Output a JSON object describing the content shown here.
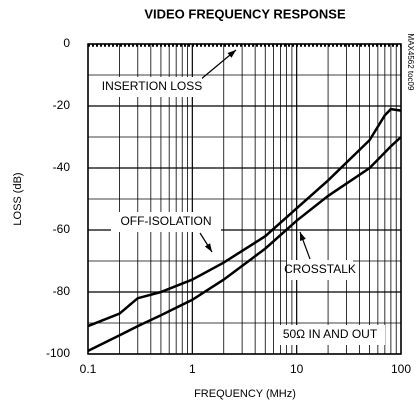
{
  "chart_data": {
    "type": "line",
    "title": "VIDEO FREQUENCY RESPONSE",
    "xlabel": "FREQUENCY (MHz)",
    "ylabel": "LOSS (dB)",
    "log_x": true,
    "grid": true,
    "color": "#000000",
    "xlim": [
      0.1,
      100
    ],
    "xticks": [
      0.1,
      1,
      10,
      100
    ],
    "ylim": [
      -100,
      0
    ],
    "yticks": [
      0,
      -20,
      -40,
      -60,
      -80,
      -100
    ],
    "x": [
      0.1,
      0.2,
      0.3,
      0.5,
      1,
      2,
      5,
      10,
      20,
      50,
      70,
      80,
      100
    ],
    "series": [
      {
        "name": "INSERTION LOSS",
        "color": "#000000",
        "style": "dotted",
        "values": [
          -0.5,
          -0.5,
          -0.5,
          -0.5,
          -0.5,
          -0.5,
          -0.5,
          -0.5,
          -0.5,
          -0.5,
          -0.5,
          -0.5,
          -0.5
        ]
      },
      {
        "name": "OFF-ISOLATION",
        "color": "#000000",
        "style": "solid",
        "values": [
          -91,
          -87,
          -82,
          -80,
          -76,
          -70.5,
          -62,
          -53,
          -44,
          -31,
          -23,
          -21,
          -21.5
        ]
      },
      {
        "name": "CROSSTALK",
        "color": "#000000",
        "style": "solid",
        "values": [
          -99,
          -94,
          -91,
          -87.5,
          -82.5,
          -76,
          -66,
          -57,
          -49,
          -40,
          -35,
          -33,
          -30
        ]
      }
    ],
    "annotations": [
      "50Ω IN AND OUT",
      "MAX4562 toc09"
    ]
  }
}
